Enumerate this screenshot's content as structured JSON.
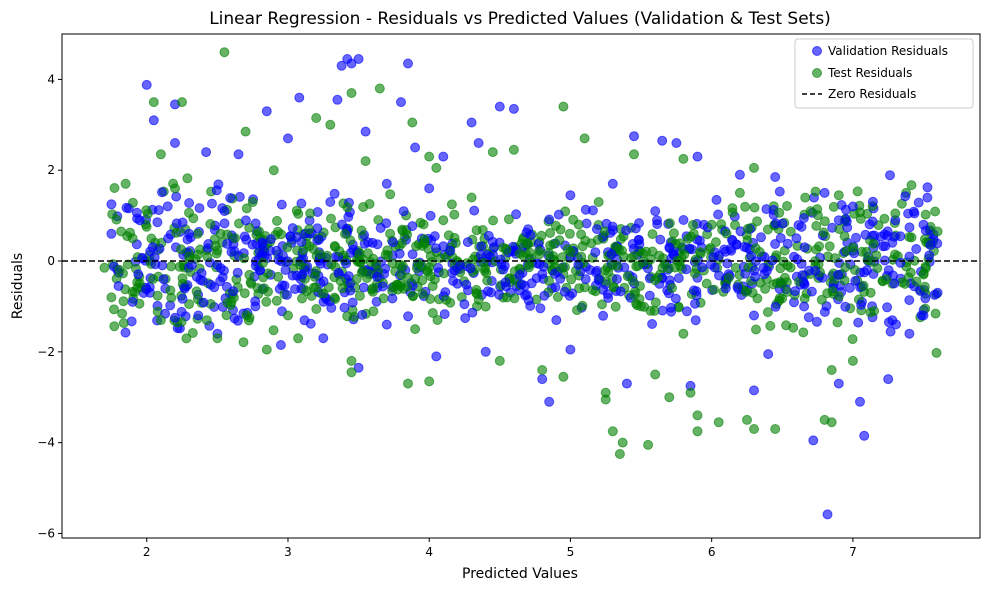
{
  "chart_data": {
    "type": "scatter",
    "title": "Linear Regression - Residuals vs Predicted Values (Validation & Test Sets)",
    "xlabel": "Predicted Values",
    "ylabel": "Residuals",
    "xlim": [
      1.4,
      7.9
    ],
    "ylim": [
      -6.1,
      5.0
    ],
    "xticks": [
      2,
      3,
      4,
      5,
      6,
      7
    ],
    "yticks": [
      -6,
      -4,
      -2,
      0,
      2,
      4
    ],
    "xtick_labels": [
      "2",
      "3",
      "4",
      "5",
      "6",
      "7"
    ],
    "ytick_labels": [
      "−6",
      "−4",
      "−2",
      "0",
      "2",
      "4"
    ],
    "grid": false,
    "legend_placement": "top-right",
    "reference_line": {
      "y": 0,
      "label": "Zero Residuals",
      "color": "#000000",
      "style": "dashed"
    },
    "series": [
      {
        "name": "Validation Residuals",
        "color": "#0000ff",
        "alpha": 0.6,
        "points": [
          [
            1.75,
            1.25
          ],
          [
            2.0,
            3.88
          ],
          [
            2.05,
            3.1
          ],
          [
            2.2,
            3.45
          ],
          [
            2.2,
            2.6
          ],
          [
            2.42,
            2.4
          ],
          [
            2.65,
            2.35
          ],
          [
            2.85,
            3.3
          ],
          [
            3.0,
            2.7
          ],
          [
            3.08,
            3.6
          ],
          [
            3.35,
            3.55
          ],
          [
            3.38,
            4.3
          ],
          [
            3.42,
            4.45
          ],
          [
            3.5,
            4.45
          ],
          [
            3.45,
            4.35
          ],
          [
            3.55,
            2.85
          ],
          [
            3.7,
            1.7
          ],
          [
            3.8,
            3.5
          ],
          [
            3.85,
            4.35
          ],
          [
            3.9,
            2.5
          ],
          [
            4.1,
            2.3
          ],
          [
            4.3,
            3.05
          ],
          [
            4.35,
            2.6
          ],
          [
            4.5,
            3.4
          ],
          [
            4.6,
            3.35
          ],
          [
            5.0,
            1.45
          ],
          [
            5.45,
            2.75
          ],
          [
            5.65,
            2.65
          ],
          [
            5.75,
            2.6
          ],
          [
            5.9,
            2.3
          ],
          [
            6.2,
            1.9
          ],
          [
            6.45,
            1.85
          ],
          [
            6.8,
            1.5
          ],
          [
            7.0,
            1.2
          ],
          [
            7.3,
            0.9
          ],
          [
            7.5,
            0.8
          ],
          [
            7.55,
            0.35
          ],
          [
            7.6,
            -0.7
          ],
          [
            7.5,
            -1.2
          ],
          [
            7.4,
            -1.6
          ],
          [
            7.05,
            -3.1
          ],
          [
            7.25,
            -2.6
          ],
          [
            6.9,
            -2.7
          ],
          [
            6.82,
            -5.58
          ],
          [
            7.08,
            -3.85
          ],
          [
            6.72,
            -3.95
          ],
          [
            6.3,
            -2.85
          ],
          [
            6.4,
            -2.05
          ],
          [
            5.85,
            -2.75
          ],
          [
            5.4,
            -2.7
          ],
          [
            5.0,
            -1.95
          ],
          [
            4.85,
            -3.1
          ],
          [
            4.8,
            -2.6
          ],
          [
            4.4,
            -2.0
          ],
          [
            4.05,
            -2.1
          ],
          [
            3.5,
            -2.35
          ],
          [
            3.25,
            -1.7
          ],
          [
            2.95,
            -1.85
          ],
          [
            2.5,
            -1.6
          ],
          [
            2.2,
            -1.25
          ],
          [
            1.9,
            -0.9
          ],
          [
            1.8,
            -0.55
          ],
          [
            1.75,
            0.6
          ],
          [
            1.95,
            0.9
          ],
          [
            2.3,
            0.6
          ],
          [
            2.6,
            0.2
          ],
          [
            3.1,
            -0.3
          ],
          [
            3.6,
            0.4
          ],
          [
            4.2,
            -0.5
          ],
          [
            4.7,
            0.7
          ],
          [
            5.2,
            -0.4
          ],
          [
            5.7,
            0.3
          ],
          [
            6.1,
            -0.6
          ],
          [
            6.6,
            0.5
          ],
          [
            7.1,
            -0.2
          ],
          [
            2.55,
            1.1
          ],
          [
            3.3,
            1.3
          ],
          [
            4.0,
            1.6
          ],
          [
            4.9,
            -1.3
          ],
          [
            5.6,
            1.1
          ],
          [
            6.3,
            -1.2
          ],
          [
            6.9,
            0.9
          ],
          [
            7.4,
            0.1
          ],
          [
            3.7,
            -1.4
          ],
          [
            5.3,
            1.7
          ]
        ]
      },
      {
        "name": "Test Residuals",
        "color": "#008000",
        "alpha": 0.6,
        "points": [
          [
            1.7,
            -0.15
          ],
          [
            1.85,
            1.7
          ],
          [
            2.05,
            3.5
          ],
          [
            2.1,
            2.35
          ],
          [
            2.2,
            1.6
          ],
          [
            2.25,
            3.5
          ],
          [
            2.55,
            4.6
          ],
          [
            2.7,
            2.85
          ],
          [
            2.9,
            2.0
          ],
          [
            3.2,
            3.15
          ],
          [
            3.3,
            3.0
          ],
          [
            3.45,
            3.7
          ],
          [
            3.55,
            2.2
          ],
          [
            3.65,
            3.8
          ],
          [
            3.88,
            3.05
          ],
          [
            4.0,
            2.3
          ],
          [
            4.05,
            2.05
          ],
          [
            4.45,
            2.4
          ],
          [
            4.6,
            2.45
          ],
          [
            4.95,
            3.4
          ],
          [
            5.1,
            2.7
          ],
          [
            5.45,
            2.35
          ],
          [
            5.8,
            2.25
          ],
          [
            6.3,
            2.05
          ],
          [
            6.9,
            1.45
          ],
          [
            7.3,
            1.05
          ],
          [
            7.6,
            0.65
          ],
          [
            7.45,
            -0.45
          ],
          [
            7.15,
            -1.1
          ],
          [
            7.0,
            -2.2
          ],
          [
            6.85,
            -2.4
          ],
          [
            6.8,
            -3.5
          ],
          [
            6.85,
            -3.55
          ],
          [
            6.45,
            -3.7
          ],
          [
            6.3,
            -3.7
          ],
          [
            6.25,
            -3.5
          ],
          [
            6.05,
            -3.55
          ],
          [
            5.9,
            -3.75
          ],
          [
            5.9,
            -3.4
          ],
          [
            5.55,
            -4.05
          ],
          [
            5.35,
            -4.25
          ],
          [
            5.3,
            -3.75
          ],
          [
            5.37,
            -4.0
          ],
          [
            5.25,
            -3.05
          ],
          [
            5.25,
            -2.9
          ],
          [
            5.7,
            -3.0
          ],
          [
            5.85,
            -2.9
          ],
          [
            5.6,
            -2.5
          ],
          [
            4.95,
            -2.55
          ],
          [
            4.8,
            -2.4
          ],
          [
            4.5,
            -2.2
          ],
          [
            4.0,
            -2.65
          ],
          [
            3.85,
            -2.7
          ],
          [
            3.45,
            -2.45
          ],
          [
            3.45,
            -2.2
          ],
          [
            2.85,
            -1.95
          ],
          [
            2.5,
            -1.7
          ],
          [
            2.1,
            -1.3
          ],
          [
            1.75,
            -0.8
          ],
          [
            1.9,
            0.5
          ],
          [
            2.3,
            0.1
          ],
          [
            2.75,
            1.3
          ],
          [
            3.15,
            0.7
          ],
          [
            3.6,
            -0.6
          ],
          [
            4.1,
            0.9
          ],
          [
            4.55,
            -0.8
          ],
          [
            5.0,
            0.2
          ],
          [
            5.5,
            -1.0
          ],
          [
            6.0,
            0.8
          ],
          [
            6.5,
            -0.5
          ],
          [
            7.0,
            0.3
          ],
          [
            7.5,
            -0.3
          ],
          [
            2.6,
            -0.9
          ],
          [
            3.9,
            -1.5
          ],
          [
            5.2,
            1.3
          ],
          [
            6.7,
            1.1
          ],
          [
            4.3,
            1.4
          ],
          [
            3.0,
            -1.2
          ],
          [
            5.8,
            -1.6
          ],
          [
            6.2,
            1.5
          ]
        ]
      }
    ],
    "legend": [
      {
        "label": "Validation Residuals",
        "kind": "marker",
        "color": "#0000ff"
      },
      {
        "label": "Test Residuals",
        "kind": "marker",
        "color": "#008000"
      },
      {
        "label": "Zero Residuals",
        "kind": "dashed-line",
        "color": "#000000"
      }
    ]
  }
}
